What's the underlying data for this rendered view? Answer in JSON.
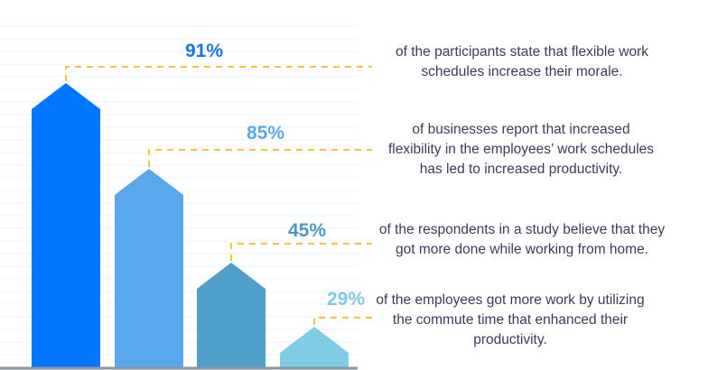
{
  "chart_data": {
    "type": "bar",
    "categories": [
      "of the participants state that flexible work schedules increase their morale.",
      "of businesses report that increased flexibility in the employees’ work schedules has led to increased productivity.",
      "of the respondents in a study believe that they got more done while working from home.",
      "of the employees got more work by utilizing the commute time that enhanced their productivity."
    ],
    "values": [
      91,
      85,
      45,
      29
    ],
    "labels": [
      "91%",
      "85%",
      "45%",
      "29%"
    ],
    "colors": [
      "#0077fe",
      "#5aa8ec",
      "#4e9fc9",
      "#80cbe5"
    ],
    "label_colors": [
      "#1a73f0",
      "#5aa8ec",
      "#4b98c4",
      "#80c9e4"
    ],
    "leader_color": "#f5c242",
    "grid": true
  }
}
